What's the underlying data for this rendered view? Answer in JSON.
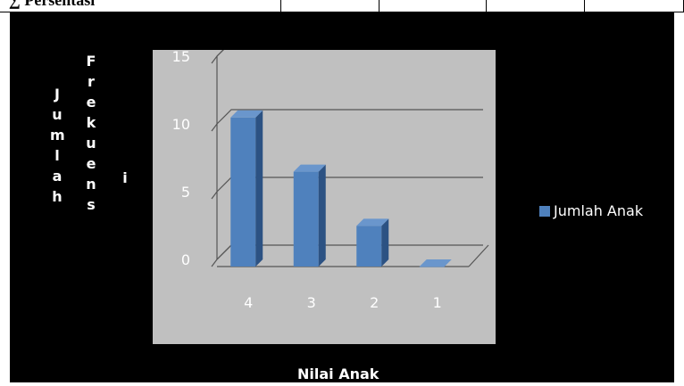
{
  "table_row": {
    "cells": [
      "∑ Persentasi",
      "",
      "",
      "",
      ""
    ]
  },
  "y_axis_title_outer": [
    "J",
    "u",
    "m",
    "l",
    "a",
    "h"
  ],
  "y_axis_title_inner": [
    "F",
    "r",
    "e",
    "k",
    "u",
    "e",
    "n",
    "s",
    "i"
  ],
  "legend": {
    "label": "Jumlah Anak",
    "color": "#4f81bd"
  },
  "chart_data": {
    "type": "bar",
    "categories": [
      "4",
      "3",
      "2",
      "1"
    ],
    "series": [
      {
        "name": "Jumlah Anak",
        "values": [
          11,
          7,
          3,
          0
        ]
      }
    ],
    "xlabel": "Nilai Anak",
    "ylabel": "Jumlah Frekuensi",
    "ylim": [
      0,
      15
    ],
    "yticks": [
      0,
      5,
      10,
      15
    ],
    "grid": true,
    "legend_position": "right",
    "colors": {
      "bar_front": "#4f81bd",
      "bar_side": "#2c5283",
      "bar_top": "#6a96cc",
      "plot_bg": "#c0c0c0",
      "background": "#000000",
      "text": "#ffffff"
    }
  }
}
